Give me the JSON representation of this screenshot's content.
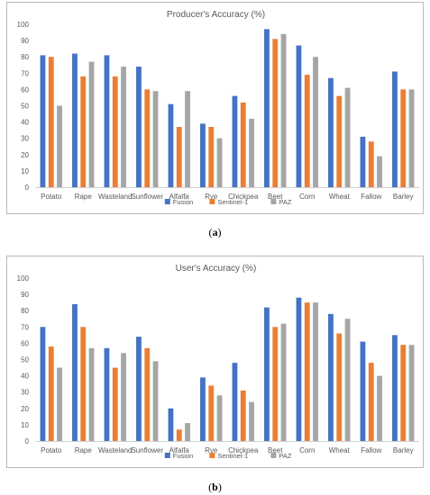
{
  "chart_data": [
    {
      "type": "bar",
      "title": "Producer's Accuracy (%)",
      "categories": [
        "Potato",
        "Rape",
        "Wasteland",
        "Sunflower",
        "Alfalfa",
        "Rye",
        "Chickpea",
        "Beet",
        "Corn",
        "Wheat",
        "Fallow",
        "Barley"
      ],
      "series": [
        {
          "name": "Fusion",
          "color": "#4472c4",
          "values": [
            81,
            82,
            81,
            74,
            51,
            39,
            56,
            97,
            87,
            67,
            31,
            71
          ]
        },
        {
          "name": "Sentinel-1",
          "color": "#ed7d31",
          "values": [
            80,
            68,
            68,
            60,
            37,
            37,
            52,
            91,
            69,
            56,
            28,
            60
          ]
        },
        {
          "name": "PAZ",
          "color": "#a5a5a5",
          "values": [
            50,
            77,
            74,
            59,
            59,
            30,
            42,
            94,
            80,
            61,
            19,
            60
          ]
        }
      ],
      "ylim": [
        0,
        100
      ],
      "yticks": [
        0,
        10,
        20,
        30,
        40,
        50,
        60,
        70,
        80,
        90,
        100
      ],
      "grid": false,
      "legend": "bottom-center"
    },
    {
      "type": "bar",
      "title": "User's Accuracy (%)",
      "categories": [
        "Potato",
        "Rape",
        "Wasteland",
        "Sunflower",
        "Alfalfa",
        "Rye",
        "Chickpea",
        "Beet",
        "Corn",
        "Wheat",
        "Fallow",
        "Barley"
      ],
      "series": [
        {
          "name": "Fusion",
          "color": "#4472c4",
          "values": [
            70,
            84,
            57,
            64,
            20,
            39,
            48,
            82,
            88,
            78,
            61,
            65
          ]
        },
        {
          "name": "Sentinel-1",
          "color": "#ed7d31",
          "values": [
            58,
            70,
            45,
            57,
            7,
            34,
            31,
            70,
            85,
            66,
            48,
            59
          ]
        },
        {
          "name": "PAZ",
          "color": "#a5a5a5",
          "values": [
            45,
            57,
            54,
            49,
            11,
            28,
            24,
            72,
            85,
            75,
            40,
            59
          ]
        }
      ],
      "ylim": [
        0,
        100
      ],
      "yticks": [
        0,
        10,
        20,
        30,
        40,
        50,
        60,
        70,
        80,
        90,
        100
      ],
      "grid": false,
      "legend": "bottom-center"
    }
  ],
  "captions": {
    "a": {
      "open": "(",
      "letter": "a",
      "close": ")"
    },
    "b": {
      "open": "(",
      "letter": "b",
      "close": ")"
    }
  }
}
